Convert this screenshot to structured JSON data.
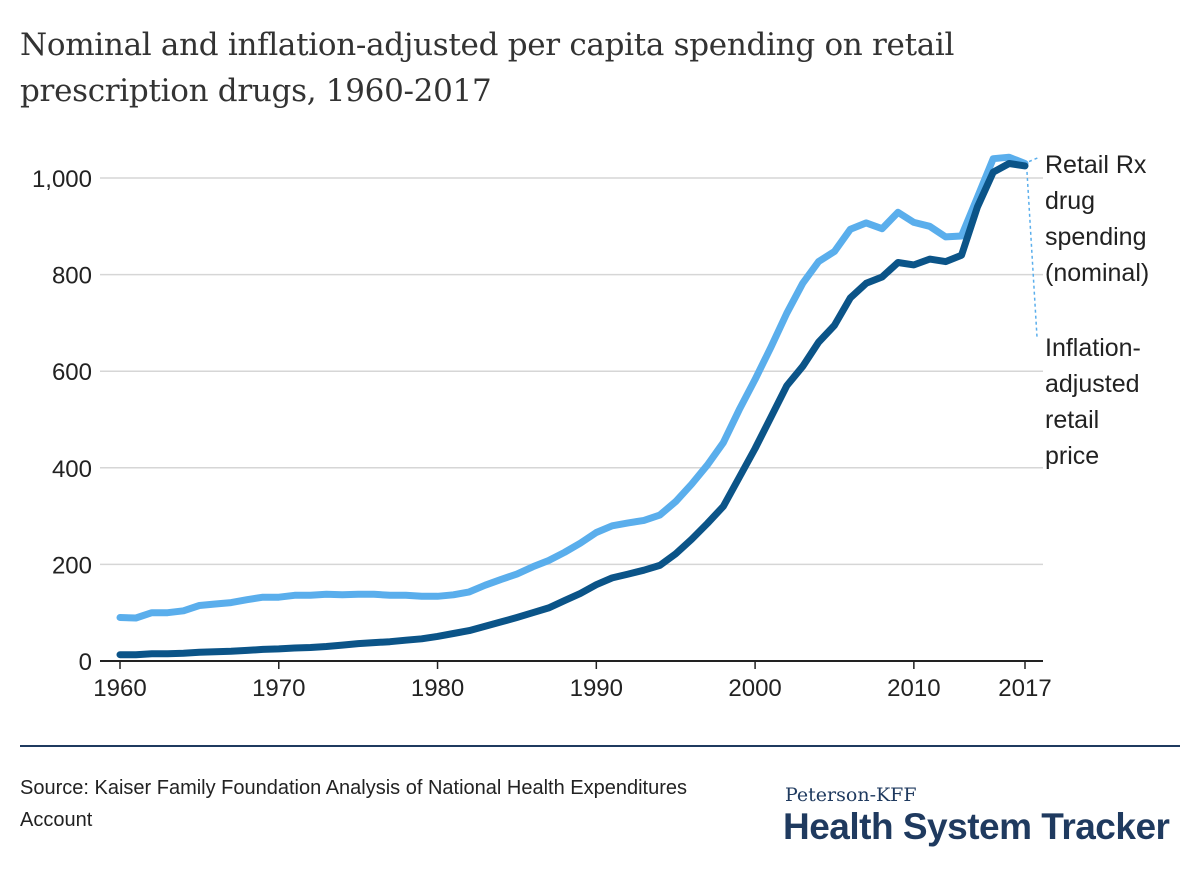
{
  "colors": {
    "nominal": "#5aaeec",
    "adjusted": "#0b5488",
    "grid": "#d6d6d6",
    "axis": "#222222",
    "brand": "#1f3a5f",
    "leader": "#5aaeec"
  },
  "chart_data": {
    "type": "line",
    "title": "Nominal and inflation-adjusted per capita spending on retail prescription drugs, 1960-2017",
    "xlabel": "",
    "ylabel": "",
    "xlim": [
      1960,
      2017
    ],
    "ylim": [
      0,
      1000
    ],
    "x_ticks": [
      {
        "value": 1960,
        "label": "1960"
      },
      {
        "value": 1970,
        "label": "1970"
      },
      {
        "value": 1980,
        "label": "1980"
      },
      {
        "value": 1990,
        "label": "1990"
      },
      {
        "value": 2000,
        "label": "2000"
      },
      {
        "value": 2010,
        "label": "2010"
      },
      {
        "value": 2017,
        "label": "2017"
      }
    ],
    "y_ticks": [
      {
        "value": 0,
        "label": "0"
      },
      {
        "value": 200,
        "label": "200"
      },
      {
        "value": 400,
        "label": "400"
      },
      {
        "value": 600,
        "label": "600"
      },
      {
        "value": 800,
        "label": "800"
      },
      {
        "value": 1000,
        "label": "1,000"
      }
    ],
    "grid": true,
    "legend": "direct labels at right end of lines",
    "x": [
      1960,
      1961,
      1962,
      1963,
      1964,
      1965,
      1966,
      1967,
      1968,
      1969,
      1970,
      1971,
      1972,
      1973,
      1974,
      1975,
      1976,
      1977,
      1978,
      1979,
      1980,
      1981,
      1982,
      1983,
      1984,
      1985,
      1986,
      1987,
      1988,
      1989,
      1990,
      1991,
      1992,
      1993,
      1994,
      1995,
      1996,
      1997,
      1998,
      1999,
      2000,
      2001,
      2002,
      2003,
      2004,
      2005,
      2006,
      2007,
      2008,
      2009,
      2010,
      2011,
      2012,
      2013,
      2014,
      2015,
      2016,
      2017
    ],
    "series": [
      {
        "name": "Retail Rx drug spending (nominal)",
        "values": [
          90,
          89,
          100,
          100,
          104,
          115,
          118,
          121,
          127,
          132,
          132,
          136,
          136,
          138,
          137,
          138,
          138,
          136,
          136,
          134,
          134,
          137,
          143,
          157,
          169,
          180,
          195,
          208,
          225,
          244,
          266,
          280,
          286,
          291,
          302,
          330,
          366,
          406,
          452,
          520,
          583,
          650,
          720,
          782,
          827,
          848,
          894,
          907,
          895,
          929,
          908,
          900,
          878,
          880,
          960,
          1040,
          1043,
          1030
        ]
      },
      {
        "name": "Inflation-adjusted retail price",
        "values": [
          13,
          13,
          15,
          15,
          16,
          18,
          19,
          20,
          22,
          24,
          25,
          27,
          28,
          30,
          33,
          36,
          38,
          40,
          43,
          46,
          51,
          57,
          63,
          72,
          81,
          90,
          100,
          110,
          125,
          140,
          158,
          172,
          180,
          188,
          198,
          222,
          252,
          285,
          320,
          380,
          440,
          505,
          570,
          610,
          660,
          695,
          752,
          782,
          795,
          825,
          820,
          832,
          827,
          840,
          940,
          1012,
          1030,
          1025
        ]
      }
    ],
    "annotations": [
      {
        "text": [
          "Retail Rx",
          "drug",
          "spending",
          "(nominal)"
        ]
      },
      {
        "text": [
          "Inflation-",
          "adjusted",
          "retail",
          "price"
        ]
      }
    ]
  },
  "source": "Source: Kaiser Family Foundation Analysis of National Health Expenditures Account",
  "brand": {
    "small": "Peterson-KFF",
    "big": "Health System Tracker"
  }
}
